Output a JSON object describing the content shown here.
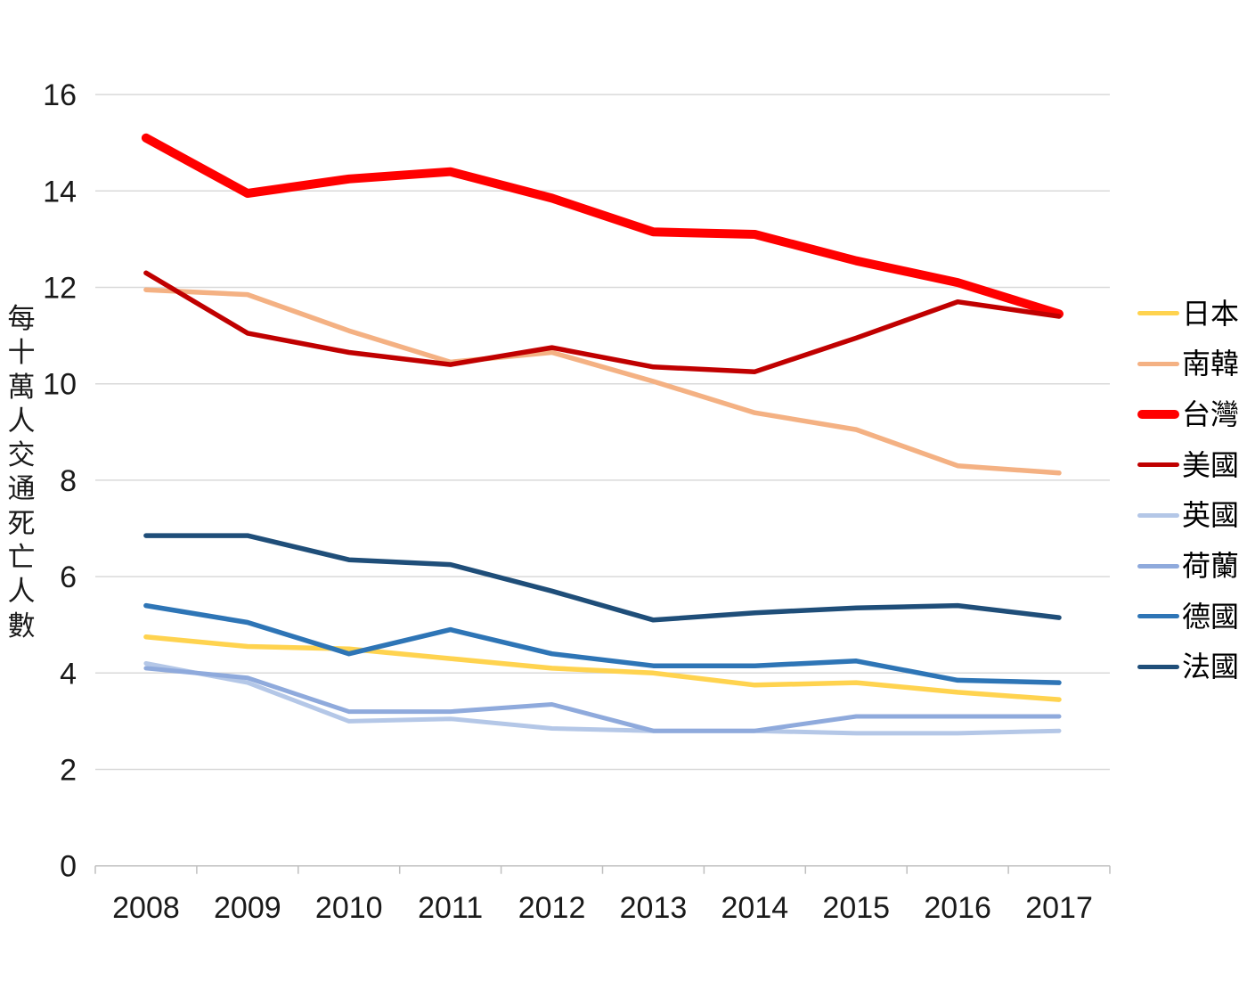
{
  "chart_data": {
    "type": "line",
    "title": "",
    "xlabel": "",
    "ylabel": "每十萬人交通死亡人數",
    "x": [
      2008,
      2009,
      2010,
      2011,
      2012,
      2013,
      2014,
      2015,
      2016,
      2017
    ],
    "ylim": [
      0,
      16
    ],
    "ytick_step": 2,
    "grid": true,
    "legend_position": "right",
    "series": [
      {
        "id": "japan",
        "name": "日本",
        "color": "#FFD34F",
        "width": 5.5,
        "values": [
          4.75,
          4.55,
          4.5,
          4.3,
          4.1,
          4.0,
          3.75,
          3.8,
          3.6,
          3.45
        ]
      },
      {
        "id": "south-korea",
        "name": "南韓",
        "color": "#F4B183",
        "width": 5.5,
        "values": [
          11.95,
          11.85,
          11.1,
          10.45,
          10.65,
          10.05,
          9.4,
          9.05,
          8.3,
          8.15
        ]
      },
      {
        "id": "taiwan",
        "name": "台灣",
        "color": "#FF0000",
        "width": 10,
        "values": [
          15.1,
          13.95,
          14.25,
          14.4,
          13.85,
          13.15,
          13.1,
          12.55,
          12.1,
          11.45
        ]
      },
      {
        "id": "usa",
        "name": "美國",
        "color": "#C00000",
        "width": 5.5,
        "values": [
          12.3,
          11.05,
          10.65,
          10.4,
          10.75,
          10.35,
          10.25,
          10.95,
          11.7,
          11.4
        ]
      },
      {
        "id": "uk",
        "name": "英國",
        "color": "#B4C7E7",
        "width": 5,
        "values": [
          4.2,
          3.8,
          3.0,
          3.05,
          2.85,
          2.8,
          2.8,
          2.75,
          2.75,
          2.8
        ]
      },
      {
        "id": "netherlands",
        "name": "荷蘭",
        "color": "#8FAADC",
        "width": 5,
        "values": [
          4.1,
          3.9,
          3.2,
          3.2,
          3.35,
          2.8,
          2.8,
          3.1,
          3.1,
          3.1
        ]
      },
      {
        "id": "germany",
        "name": "德國",
        "color": "#2E75B6",
        "width": 5.5,
        "values": [
          5.4,
          5.05,
          4.4,
          4.9,
          4.4,
          4.15,
          4.15,
          4.25,
          3.85,
          3.8
        ]
      },
      {
        "id": "france",
        "name": "法國",
        "color": "#1F4E79",
        "width": 5.5,
        "values": [
          6.85,
          6.85,
          6.35,
          6.25,
          5.7,
          5.1,
          5.25,
          5.35,
          5.4,
          5.15
        ]
      }
    ]
  },
  "colors": {
    "gridline": "#D9D9D9",
    "axis_line": "#BFBFBF",
    "axis_text": "#1A1A1A",
    "legend_text": "#000000",
    "background": "#FFFFFF"
  }
}
